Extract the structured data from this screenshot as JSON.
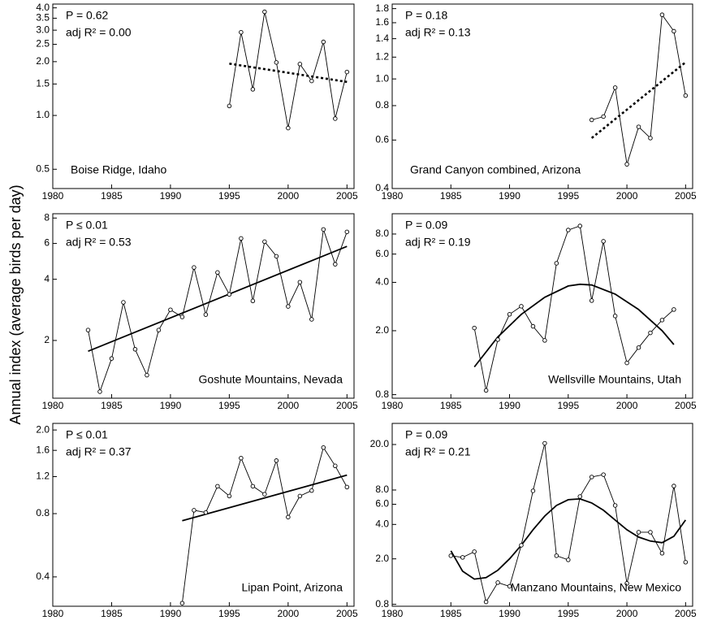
{
  "y_label": "Annual index (average birds per day)",
  "chart_data": [
    {
      "type": "line",
      "log_y": true,
      "xlim": [
        1980,
        2005.6
      ],
      "xticks": [
        1980,
        1985,
        1990,
        1995,
        2000,
        2005
      ],
      "ylim": [
        0.39,
        4.2
      ],
      "yticks": [
        0.5,
        {
          "value": 1,
          "label": "1.0"
        },
        1.5,
        {
          "value": 2,
          "label": "2.0"
        },
        2.5,
        {
          "value": 3,
          "label": "3.0"
        },
        3.5,
        {
          "value": 4,
          "label": "4.0"
        }
      ],
      "annotations": [
        "P = 0.62",
        "adj R² = 0.00"
      ],
      "site": "Boise Ridge, Idaho",
      "site_position": "bottom-left",
      "observed": {
        "x": [
          1995,
          1996,
          1997,
          1998,
          1999,
          2000,
          2001,
          2002,
          2003,
          2004,
          2005
        ],
        "values": [
          1.13,
          2.92,
          1.4,
          3.8,
          1.98,
          0.85,
          1.94,
          1.56,
          2.58,
          0.96,
          1.75
        ]
      },
      "fit": {
        "x": [
          1995,
          2005
        ],
        "values": [
          1.95,
          1.54
        ],
        "style": "dotted"
      }
    },
    {
      "type": "line",
      "log_y": true,
      "xlim": [
        1980,
        2005.6
      ],
      "xticks": [
        1980,
        1985,
        1990,
        1995,
        2000,
        2005
      ],
      "ylim": [
        0.4,
        1.87
      ],
      "yticks": [
        0.4,
        0.6,
        0.8,
        {
          "value": 1,
          "label": "1.0"
        },
        1.2,
        1.4,
        1.6,
        1.8
      ],
      "annotations": [
        "P = 0.18",
        "adj R² = 0.13"
      ],
      "site": "Grand Canyon combined, Arizona",
      "site_position": "bottom-left",
      "observed": {
        "x": [
          1997,
          1998,
          1999,
          2000,
          2001,
          2002,
          2003,
          2004,
          2005
        ],
        "values": [
          0.71,
          0.73,
          0.93,
          0.49,
          0.67,
          0.61,
          1.71,
          1.49,
          0.87
        ]
      },
      "fit": {
        "x": [
          1997,
          2005
        ],
        "values": [
          0.61,
          1.15
        ],
        "style": "dotted"
      }
    },
    {
      "type": "line",
      "log_y": true,
      "xlim": [
        1980,
        2005.6
      ],
      "xticks": [
        1980,
        1985,
        1990,
        1995,
        2000,
        2005
      ],
      "ylim": [
        1.04,
        8.4
      ],
      "yticks": [
        2,
        4,
        6,
        8
      ],
      "annotations": [
        "P ≤ 0.01",
        "adj R² = 0.53"
      ],
      "site": "Goshute Mountains, Nevada",
      "site_position": "bottom-right",
      "observed": {
        "x": [
          1983,
          1984,
          1985,
          1986,
          1987,
          1988,
          1989,
          1990,
          1991,
          1992,
          1993,
          1994,
          1995,
          1996,
          1997,
          1998,
          1999,
          2000,
          2001,
          2002,
          2003,
          2004,
          2005
        ],
        "values": [
          2.25,
          1.12,
          1.63,
          3.08,
          1.81,
          1.35,
          2.25,
          2.83,
          2.61,
          4.57,
          2.68,
          4.32,
          3.37,
          6.35,
          3.13,
          6.12,
          5.19,
          2.94,
          3.87,
          2.54,
          7.03,
          4.74,
          6.84
        ]
      },
      "fit": {
        "x": [
          1983,
          2005
        ],
        "values": [
          1.77,
          5.8
        ],
        "style": "solid"
      }
    },
    {
      "type": "line",
      "log_y": true,
      "xlim": [
        1980,
        2005.6
      ],
      "xticks": [
        1980,
        1985,
        1990,
        1995,
        2000,
        2005
      ],
      "ylim": [
        0.76,
        10.7
      ],
      "yticks": [
        0.8,
        {
          "value": 2,
          "label": "2.0"
        },
        {
          "value": 4,
          "label": "4.0"
        },
        {
          "value": 6,
          "label": "6.0"
        },
        {
          "value": 8,
          "label": "8.0"
        }
      ],
      "annotations": [
        "P = 0.09",
        "adj R² = 0.19"
      ],
      "site": "Wellsville Mountains, Utah",
      "site_position": "bottom-right",
      "observed": {
        "x": [
          1987,
          1988,
          1989,
          1990,
          1991,
          1992,
          1993,
          1994,
          1995,
          1996,
          1997,
          1998,
          1999,
          2000,
          2001,
          2002,
          2003,
          2004
        ],
        "values": [
          2.08,
          0.85,
          1.76,
          2.53,
          2.84,
          2.13,
          1.74,
          5.26,
          8.47,
          8.98,
          3.08,
          7.21,
          2.47,
          1.26,
          1.57,
          1.94,
          2.33,
          2.71
        ]
      },
      "fit": {
        "x": [
          1987,
          1989,
          1991,
          1993,
          1995,
          1996,
          1997,
          1999,
          2001,
          2003,
          2004
        ],
        "values": [
          1.19,
          1.83,
          2.53,
          3.23,
          3.8,
          3.89,
          3.85,
          3.38,
          2.71,
          2.0,
          1.64
        ],
        "style": "solid"
      }
    },
    {
      "type": "line",
      "log_y": true,
      "xlim": [
        1980,
        2005.6
      ],
      "xticks": [
        1980,
        1985,
        1990,
        1995,
        2000,
        2005
      ],
      "ylim": [
        0.29,
        2.15
      ],
      "yticks": [
        0.4,
        0.8,
        1.2,
        1.6,
        {
          "value": 2,
          "label": "2.0"
        }
      ],
      "annotations": [
        "P ≤  0.01",
        "adj R² = 0.37"
      ],
      "site": "Lipan Point, Arizona",
      "site_position": "bottom-right",
      "observed": {
        "x": [
          1991,
          1992,
          1993,
          1994,
          1995,
          1996,
          1997,
          1998,
          1999,
          2000,
          2001,
          2002,
          2003,
          2004,
          2005
        ],
        "values": [
          0.3,
          0.83,
          0.81,
          1.08,
          0.97,
          1.47,
          1.08,
          0.99,
          1.43,
          0.77,
          0.97,
          1.03,
          1.65,
          1.35,
          1.07
        ]
      },
      "fit": {
        "x": [
          1991,
          2005
        ],
        "values": [
          0.74,
          1.22
        ],
        "style": "solid"
      }
    },
    {
      "type": "line",
      "log_y": true,
      "xlim": [
        1980,
        2005.6
      ],
      "xticks": [
        1980,
        1985,
        1990,
        1995,
        2000,
        2005
      ],
      "ylim": [
        0.77,
        30.6
      ],
      "yticks": [
        0.8,
        {
          "value": 2,
          "label": "2.0"
        },
        {
          "value": 4,
          "label": "4.0"
        },
        {
          "value": 6,
          "label": "6.0"
        },
        {
          "value": 8,
          "label": "8.0"
        },
        {
          "value": 20,
          "label": "20.0"
        }
      ],
      "annotations": [
        "P = 0.09",
        "adj R² = 0.21"
      ],
      "site": "Manzano Mountains, New Mexico",
      "site_position": "bottom-right",
      "observed": {
        "x": [
          1985,
          1986,
          1987,
          1988,
          1989,
          1990,
          1991,
          1992,
          1993,
          1994,
          1995,
          1996,
          1997,
          1998,
          1999,
          2000,
          2001,
          2002,
          2003,
          2004,
          2005
        ],
        "values": [
          2.13,
          2.06,
          2.31,
          0.84,
          1.24,
          1.15,
          2.63,
          7.87,
          20.5,
          2.13,
          1.96,
          7.02,
          10.4,
          10.9,
          5.86,
          1.22,
          3.42,
          3.42,
          2.24,
          8.67,
          1.87
        ]
      },
      "fit": {
        "x": [
          1985,
          1986,
          1987,
          1988,
          1989,
          1990,
          1991,
          1992,
          1993,
          1994,
          1995,
          1996,
          1997,
          1998,
          1999,
          2000,
          2001,
          2002,
          2003,
          2004,
          2005
        ],
        "values": [
          2.35,
          1.56,
          1.33,
          1.37,
          1.59,
          2.0,
          2.63,
          3.59,
          4.74,
          5.86,
          6.58,
          6.69,
          6.16,
          5.32,
          4.37,
          3.59,
          3.1,
          2.86,
          2.77,
          3.15,
          4.37
        ],
        "style": "solid"
      }
    }
  ]
}
